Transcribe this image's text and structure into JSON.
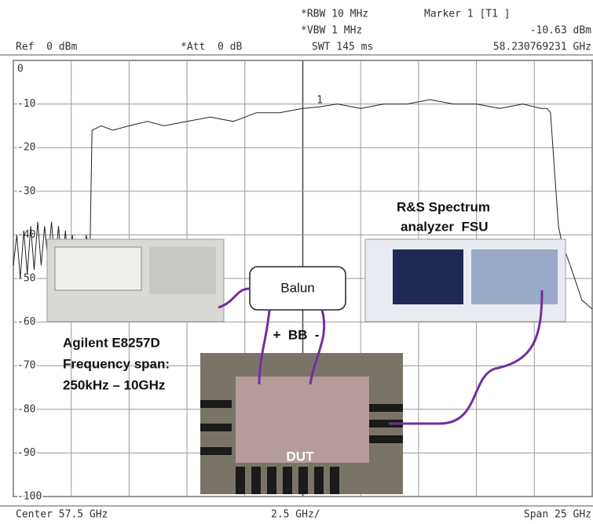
{
  "chart_data": {
    "type": "line",
    "header": {
      "rbw": "*RBW 10 MHz",
      "vbw": "*VBW 1 MHz",
      "swt": "SWT 145 ms",
      "marker_title": "Marker 1 [T1 ]",
      "marker_level": "-10.63 dBm",
      "marker_freq": "58.230769231 GHz",
      "ref": "Ref  0 dBm",
      "att": "*Att  0 dB"
    },
    "footer": {
      "center": "Center 57.5 GHz",
      "div": "2.5 GHz/",
      "span": "Span 25 GHz"
    },
    "x": [
      45.0,
      45.15,
      45.3,
      45.45,
      45.6,
      45.75,
      45.9,
      46.05,
      46.2,
      46.35,
      46.5,
      46.65,
      46.8,
      46.95,
      47.1,
      47.25,
      47.4,
      47.55,
      47.7,
      47.85,
      48.0,
      48.15,
      48.3,
      48.4,
      48.8,
      49.3,
      50.0,
      50.8,
      51.5,
      52.5,
      53.5,
      54.5,
      55.5,
      56.5,
      57.5,
      58.23,
      59.0,
      60.0,
      61.0,
      62.0,
      63.0,
      64.0,
      65.0,
      66.0,
      67.0,
      67.8,
      68.05,
      68.2,
      68.37,
      68.54,
      68.7,
      69.05,
      69.56,
      70.0
    ],
    "values": [
      -47,
      -40,
      -50,
      -39,
      -49,
      -38,
      -48,
      -37,
      -47,
      -38,
      -46,
      -37,
      -47,
      -38,
      -48,
      -39,
      -49,
      -40,
      -50,
      -41,
      -49,
      -40,
      -46,
      -16,
      -15,
      -16,
      -15,
      -14,
      -15,
      -14,
      -13,
      -14,
      -12,
      -12,
      -11,
      -10.63,
      -10,
      -11,
      -10,
      -10,
      -9,
      -10,
      -10,
      -11,
      -10,
      -11,
      -11,
      -12,
      -25,
      -38,
      -42,
      -47,
      -55,
      -57
    ],
    "color": "#222222",
    "xlim": [
      45,
      70
    ],
    "xticks": [
      45,
      47.5,
      50,
      52.5,
      55,
      57.5,
      60,
      62.5,
      65,
      67.5,
      70
    ],
    "ylim": [
      -100,
      0
    ],
    "yticks": [
      0,
      -10,
      -20,
      -30,
      -40,
      -50,
      -60,
      -70,
      -80,
      -90,
      -100
    ],
    "grid": true,
    "marker": {
      "label": "1",
      "x": 58.230769231,
      "y": -10.63
    },
    "annotations": {
      "analyzer": [
        "R&S Spectrum",
        "analyzer  FSU"
      ],
      "generator": [
        "Agilent E8257D",
        "Frequency span:",
        "250kHz – 10GHz"
      ],
      "balun": "Balun",
      "baseband": "+  BB  -",
      "dut": "DUT"
    }
  }
}
